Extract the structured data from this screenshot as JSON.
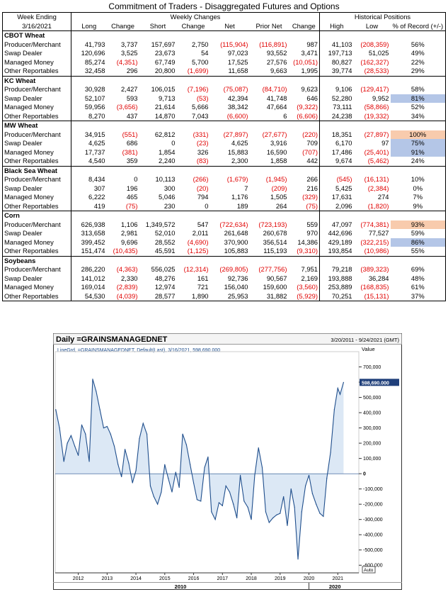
{
  "title": "Commitment of Traders - Disaggregated Futures and Options",
  "header": {
    "week_ending_label": "Week Ending",
    "week_ending_date": "3/16/2021",
    "weekly_changes": "Weekly Changes",
    "historical_positions": "Historical Positions",
    "columns": [
      "Long",
      "Change",
      "Short",
      "Change",
      "Net",
      "Prior Net",
      "Change",
      "High",
      "Low",
      "% of Record (+/-)"
    ]
  },
  "sections": [
    {
      "name": "CBOT Wheat",
      "rows": [
        {
          "label": "Producer/Merchant",
          "cells": [
            "41,793",
            "3,737",
            "157,697",
            "2,750",
            "(115,904)",
            "(116,891)",
            "987",
            "41,103",
            "(208,359)",
            "56%"
          ]
        },
        {
          "label": "Swap Dealer",
          "cells": [
            "120,696",
            "3,525",
            "23,673",
            "54",
            "97,023",
            "93,552",
            "3,471",
            "197,713",
            "51,025",
            "49%"
          ]
        },
        {
          "label": "Managed Money",
          "cells": [
            "85,274",
            "(4,351)",
            "67,749",
            "5,700",
            "17,525",
            "27,576",
            "(10,051)",
            "80,827",
            "(162,327)",
            "22%"
          ]
        },
        {
          "label": "Other Reportables",
          "cells": [
            "32,458",
            "296",
            "20,800",
            "(1,699)",
            "11,658",
            "9,663",
            "1,995",
            "39,774",
            "(28,533)",
            "29%"
          ]
        }
      ]
    },
    {
      "name": "KC Wheat",
      "rows": [
        {
          "label": "Producer/Merchant",
          "cells": [
            "30,928",
            "2,427",
            "106,015",
            "(7,196)",
            "(75,087)",
            "(84,710)",
            "9,623",
            "9,106",
            "(129,417)",
            "58%"
          ]
        },
        {
          "label": "Swap Dealer",
          "cells": [
            "52,107",
            "593",
            "9,713",
            "(53)",
            "42,394",
            "41,748",
            "646",
            "52,280",
            "9,952",
            "81%"
          ]
        },
        {
          "label": "Managed Money",
          "cells": [
            "59,956",
            "(3,656)",
            "21,614",
            "5,666",
            "38,342",
            "47,664",
            "(9,322)",
            "73,111",
            "(58,866)",
            "52%"
          ]
        },
        {
          "label": "Other Reportables",
          "cells": [
            "8,270",
            "437",
            "14,870",
            "7,043",
            "(6,600)",
            "6",
            "(6,606)",
            "24,238",
            "(19,332)",
            "34%"
          ]
        }
      ]
    },
    {
      "name": "MW Wheat",
      "rows": [
        {
          "label": "Producer/Merchant",
          "cells": [
            "34,915",
            "(551)",
            "62,812",
            "(331)",
            "(27,897)",
            "(27,677)",
            "(220)",
            "18,351",
            "(27,897)",
            "100%"
          ]
        },
        {
          "label": "Swap Dealer",
          "cells": [
            "4,625",
            "686",
            "0",
            "(23)",
            "4,625",
            "3,916",
            "709",
            "6,170",
            "97",
            "75%"
          ]
        },
        {
          "label": "Managed Money",
          "cells": [
            "17,737",
            "(381)",
            "1,854",
            "326",
            "15,883",
            "16,590",
            "(707)",
            "17,486",
            "(25,401)",
            "91%"
          ]
        },
        {
          "label": "Other Reportables",
          "cells": [
            "4,540",
            "359",
            "2,240",
            "(83)",
            "2,300",
            "1,858",
            "442",
            "9,674",
            "(5,462)",
            "24%"
          ]
        }
      ]
    },
    {
      "name": "Black Sea Wheat",
      "rows": [
        {
          "label": "Producer/Merchant",
          "cells": [
            "8,434",
            "0",
            "10,113",
            "(266)",
            "(1,679)",
            "(1,945)",
            "266",
            "(545)",
            "(16,131)",
            "10%"
          ]
        },
        {
          "label": "Swap Dealer",
          "cells": [
            "307",
            "196",
            "300",
            "(20)",
            "7",
            "(209)",
            "216",
            "5,425",
            "(2,384)",
            "0%"
          ]
        },
        {
          "label": "Managed Money",
          "cells": [
            "6,222",
            "465",
            "5,046",
            "794",
            "1,176",
            "1,505",
            "(329)",
            "17,631",
            "274",
            "7%"
          ]
        },
        {
          "label": "Other Reportables",
          "cells": [
            "419",
            "(75)",
            "230",
            "0",
            "189",
            "264",
            "(75)",
            "2,096",
            "(1,820)",
            "9%"
          ]
        }
      ]
    },
    {
      "name": "Corn",
      "rows": [
        {
          "label": "Producer/Merchant",
          "cells": [
            "626,938",
            "1,106",
            "1,349,572",
            "547",
            "(722,634)",
            "(723,193)",
            "559",
            "47,097",
            "(774,381)",
            "93%"
          ]
        },
        {
          "label": "Swap Dealer",
          "cells": [
            "313,658",
            "2,981",
            "52,010",
            "2,011",
            "261,648",
            "260,678",
            "970",
            "442,696",
            "77,527",
            "59%"
          ]
        },
        {
          "label": "Managed Money",
          "cells": [
            "399,452",
            "9,696",
            "28,552",
            "(4,690)",
            "370,900",
            "356,514",
            "14,386",
            "429,189",
            "(322,215)",
            "86%"
          ]
        },
        {
          "label": "Other Reportables",
          "cells": [
            "151,474",
            "(10,435)",
            "45,591",
            "(1,125)",
            "105,883",
            "115,193",
            "(9,310)",
            "193,854",
            "(10,986)",
            "55%"
          ]
        }
      ]
    },
    {
      "name": "Soybeans",
      "rows": [
        {
          "label": "Producer/Merchant",
          "cells": [
            "286,220",
            "(4,363)",
            "556,025",
            "(12,314)",
            "(269,805)",
            "(277,756)",
            "7,951",
            "79,218",
            "(389,323)",
            "69%"
          ]
        },
        {
          "label": "Swap Dealer",
          "cells": [
            "141,012",
            "2,330",
            "48,276",
            "161",
            "92,736",
            "90,567",
            "2,169",
            "193,888",
            "36,284",
            "48%"
          ]
        },
        {
          "label": "Managed Money",
          "cells": [
            "169,014",
            "(2,839)",
            "12,974",
            "721",
            "156,040",
            "159,600",
            "(3,560)",
            "253,889",
            "(168,835)",
            "61%"
          ]
        },
        {
          "label": "Other Reportables",
          "cells": [
            "54,530",
            "(4,039)",
            "28,577",
            "1,890",
            "25,953",
            "31,882",
            "(5,929)",
            "70,251",
            "(15,131)",
            "37%"
          ]
        }
      ]
    }
  ],
  "colors": {
    "negative": "#e00000",
    "highlight_orange": "#f8cbad",
    "highlight_blue": "#b4c6e7",
    "line": "#1f4e8c",
    "fill": "#d6e4f3",
    "value_tag": "#1f3f7a"
  },
  "highlights": [
    {
      "section": 1,
      "row": 1,
      "color": "blue"
    },
    {
      "section": 2,
      "row": 0,
      "color": "orange"
    },
    {
      "section": 2,
      "row": 1,
      "color": "blue"
    },
    {
      "section": 2,
      "row": 2,
      "color": "blue"
    },
    {
      "section": 4,
      "row": 0,
      "color": "orange"
    },
    {
      "section": 4,
      "row": 2,
      "color": "blue"
    }
  ],
  "chart_data": {
    "type": "area",
    "title": "Daily =GRAINSMANAGEDNET",
    "date_range": "3/20/2011 - 9/24/2021 (GMT)",
    "legend": "LineGrd, =GRAINSMANAGEDNET, Default(Last), 3/16/2021, 598,690.000",
    "value_axis_label": "Value",
    "current_value": 598690,
    "current_value_label": "598,690.000",
    "ylim": [
      -650000,
      800000
    ],
    "yticks": [
      -600000,
      -500000,
      -400000,
      -300000,
      -200000,
      -100000,
      0,
      100000,
      200000,
      300000,
      400000,
      500000,
      600000,
      700000
    ],
    "ytick_labels": [
      "-600,000",
      "-500,000",
      "-400,000",
      "-300,000",
      "-200,000",
      "-100,000",
      "0",
      "100,000",
      "200,000",
      "300,000",
      "400,000",
      "500,000",
      "600,000",
      "700,000"
    ],
    "xlim": [
      2011.2,
      2021.73
    ],
    "xticks": [
      2012,
      2013,
      2014,
      2015,
      2016,
      2017,
      2018,
      2019,
      2020,
      2021
    ],
    "xtick_labels": [
      "2012",
      "2013",
      "2014",
      "2015",
      "2016",
      "2017",
      "2018",
      "2019",
      "2020",
      "2021"
    ],
    "decade_labels": [
      {
        "x": 2010,
        "label": "2010"
      },
      {
        "x": 2020,
        "label": "2020"
      }
    ],
    "auto_label": "Auto",
    "x": [
      2011.22,
      2011.35,
      2011.5,
      2011.62,
      2011.75,
      2011.88,
      2012.0,
      2012.12,
      2012.25,
      2012.38,
      2012.5,
      2012.62,
      2012.75,
      2012.88,
      2013.0,
      2013.12,
      2013.25,
      2013.38,
      2013.5,
      2013.62,
      2013.75,
      2013.88,
      2014.0,
      2014.12,
      2014.25,
      2014.38,
      2014.5,
      2014.62,
      2014.75,
      2014.88,
      2015.0,
      2015.12,
      2015.25,
      2015.38,
      2015.5,
      2015.62,
      2015.75,
      2015.88,
      2016.0,
      2016.12,
      2016.25,
      2016.38,
      2016.5,
      2016.62,
      2016.75,
      2016.88,
      2017.0,
      2017.12,
      2017.25,
      2017.38,
      2017.5,
      2017.62,
      2017.75,
      2017.88,
      2018.0,
      2018.12,
      2018.25,
      2018.38,
      2018.5,
      2018.62,
      2018.75,
      2018.88,
      2019.0,
      2019.12,
      2019.25,
      2019.38,
      2019.5,
      2019.62,
      2019.75,
      2019.88,
      2020.0,
      2020.12,
      2020.25,
      2020.38,
      2020.5,
      2020.62,
      2020.75,
      2020.88,
      2021.0,
      2021.08,
      2021.2
    ],
    "values": [
      420000,
      300000,
      80000,
      200000,
      250000,
      180000,
      120000,
      320000,
      260000,
      80000,
      620000,
      540000,
      420000,
      300000,
      310000,
      260000,
      180000,
      60000,
      -20000,
      160000,
      70000,
      -60000,
      20000,
      230000,
      330000,
      260000,
      -80000,
      -150000,
      -200000,
      -120000,
      60000,
      -30000,
      -120000,
      10000,
      -90000,
      260000,
      190000,
      60000,
      -60000,
      -170000,
      -180000,
      40000,
      110000,
      -250000,
      -300000,
      -190000,
      -210000,
      -80000,
      -120000,
      -200000,
      -290000,
      -10000,
      -180000,
      -220000,
      -300000,
      -10000,
      170000,
      40000,
      -250000,
      -320000,
      -290000,
      -270000,
      -260000,
      -150000,
      -340000,
      -100000,
      -220000,
      -560000,
      -250000,
      -80000,
      -10000,
      -130000,
      -200000,
      -260000,
      -280000,
      -30000,
      140000,
      420000,
      560000,
      520000,
      598690
    ]
  }
}
